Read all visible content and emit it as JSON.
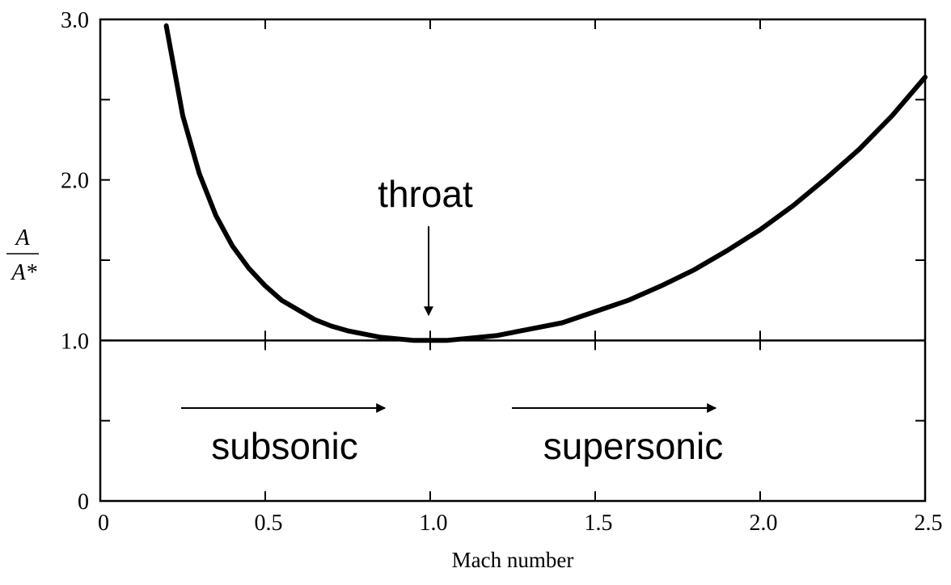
{
  "chart_data": {
    "type": "line",
    "xlabel": "Mach number",
    "ylabel": {
      "numerator": "A",
      "denominator": "A*"
    },
    "xlim": [
      0,
      2.5
    ],
    "ylim": [
      0,
      3.0
    ],
    "x_ticks": [
      0,
      0.5,
      1.0,
      1.5,
      2.0,
      2.5
    ],
    "x_tick_labels": [
      "0",
      "0.5",
      "1.0",
      "1.5",
      "2.0",
      "2.5"
    ],
    "y_tick_labels": [
      {
        "value": 0,
        "label": "0"
      },
      {
        "value": 1.0,
        "label": "1.0"
      },
      {
        "value": 2.0,
        "label": "2.0"
      },
      {
        "value": 3.0,
        "label": "3.0"
      }
    ],
    "y_minor_ticks": [
      0.5,
      1.5,
      2.5
    ],
    "reference_line": {
      "y": 1.0
    },
    "series": [
      {
        "points": [
          [
            0.2,
            2.96
          ],
          [
            0.25,
            2.4
          ],
          [
            0.3,
            2.04
          ],
          [
            0.35,
            1.78
          ],
          [
            0.4,
            1.59
          ],
          [
            0.45,
            1.45
          ],
          [
            0.5,
            1.34
          ],
          [
            0.55,
            1.25
          ],
          [
            0.6,
            1.19
          ],
          [
            0.65,
            1.13
          ],
          [
            0.7,
            1.09
          ],
          [
            0.75,
            1.06
          ],
          [
            0.8,
            1.04
          ],
          [
            0.85,
            1.02
          ],
          [
            0.9,
            1.01
          ],
          [
            0.95,
            1.0
          ],
          [
            1.0,
            1.0
          ],
          [
            1.05,
            1.0
          ],
          [
            1.1,
            1.01
          ],
          [
            1.15,
            1.02
          ],
          [
            1.2,
            1.03
          ],
          [
            1.3,
            1.07
          ],
          [
            1.4,
            1.11
          ],
          [
            1.5,
            1.18
          ],
          [
            1.6,
            1.25
          ],
          [
            1.7,
            1.34
          ],
          [
            1.8,
            1.44
          ],
          [
            1.9,
            1.56
          ],
          [
            2.0,
            1.69
          ],
          [
            2.1,
            1.84
          ],
          [
            2.2,
            2.01
          ],
          [
            2.3,
            2.19
          ],
          [
            2.4,
            2.4
          ],
          [
            2.5,
            2.64
          ]
        ]
      }
    ],
    "annotations": {
      "throat": {
        "label": "throat",
        "arrow_x": 1.0
      },
      "subsonic": {
        "label": "subsonic"
      },
      "supersonic": {
        "label": "supersonic"
      }
    }
  }
}
